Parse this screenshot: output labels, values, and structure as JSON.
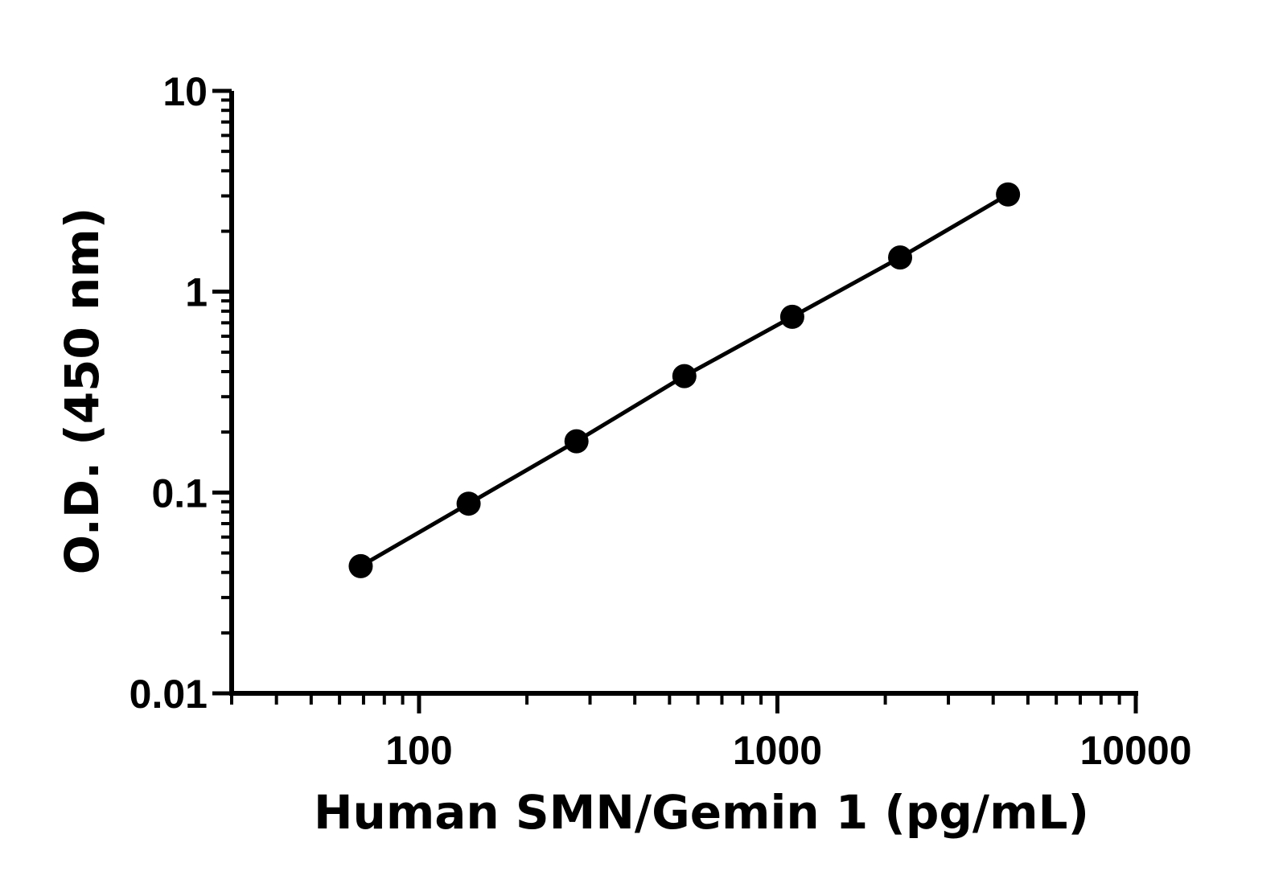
{
  "chart_data": {
    "type": "scatter",
    "title": "",
    "xlabel": "Human SMN/Gemin 1 (pg/mL)",
    "ylabel": "O.D. (450 nm)",
    "x_scale": "log",
    "y_scale": "log",
    "xlim": [
      30,
      10000
    ],
    "ylim": [
      0.01,
      10
    ],
    "x_ticks": [
      {
        "value": 100,
        "label": "100"
      },
      {
        "value": 1000,
        "label": "1000"
      },
      {
        "value": 10000,
        "label": "10000"
      }
    ],
    "y_ticks": [
      {
        "value": 10,
        "label": "10"
      },
      {
        "value": 1,
        "label": "1"
      },
      {
        "value": 0.1,
        "label": "0.1"
      },
      {
        "value": 0.01,
        "label": "0.01"
      }
    ],
    "grid": false,
    "connect_points": true,
    "color": "#000000",
    "series": [
      {
        "x": [
          68.75,
          137.5,
          275,
          550,
          1100,
          2200,
          4400
        ],
        "y": [
          0.043,
          0.088,
          0.18,
          0.38,
          0.75,
          1.48,
          3.05
        ]
      }
    ]
  }
}
